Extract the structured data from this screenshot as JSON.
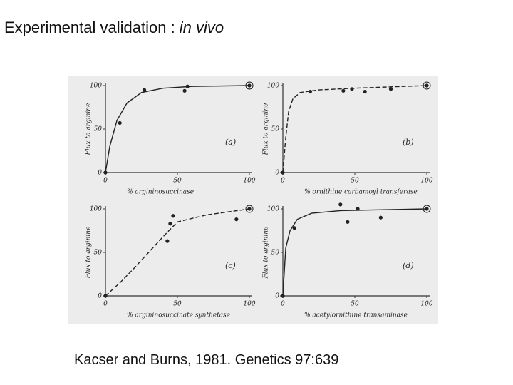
{
  "title": {
    "text": "Experimental validation : ",
    "emphasis": "in vivo"
  },
  "citation": "Kacser and Burns, 1981. Genetics 97:639",
  "chart_data": [
    {
      "type": "scatter",
      "panel_label": "(a)",
      "y_label": "Flux to arginine",
      "x_label": "% argininosuccinase",
      "xlim": [
        0,
        100
      ],
      "ylim": [
        0,
        100
      ],
      "xticks": [
        0,
        50,
        100
      ],
      "yticks": [
        0,
        50,
        100
      ],
      "color": "#222222",
      "points": {
        "x": [
          0,
          10,
          27,
          55,
          57,
          100
        ],
        "values": [
          0,
          57,
          95,
          94,
          99,
          100
        ]
      },
      "curve": {
        "dashed": false,
        "x": [
          0,
          3,
          8,
          15,
          25,
          40,
          60,
          100
        ],
        "values": [
          0,
          30,
          60,
          80,
          92,
          97,
          99,
          100
        ]
      }
    },
    {
      "type": "scatter",
      "panel_label": "(b)",
      "y_label": "Flux to arginine",
      "x_label": "% ornithine carbamoyl transferase",
      "xlim": [
        0,
        100
      ],
      "ylim": [
        0,
        100
      ],
      "xticks": [
        0,
        50,
        100
      ],
      "yticks": [
        0,
        50,
        100
      ],
      "color": "#222222",
      "points": {
        "x": [
          0,
          19,
          42,
          48,
          57,
          75,
          100
        ],
        "values": [
          0,
          93,
          94,
          96,
          93,
          96,
          100
        ]
      },
      "curve": {
        "dashed": true,
        "x": [
          0,
          2,
          4,
          7,
          12,
          25,
          50,
          100
        ],
        "values": [
          0,
          40,
          70,
          85,
          92,
          95,
          97,
          100
        ]
      }
    },
    {
      "type": "scatter",
      "panel_label": "(c)",
      "y_label": "Flux to arginine",
      "x_label": "% argininosuccinate synthetase",
      "xlim": [
        0,
        100
      ],
      "ylim": [
        0,
        100
      ],
      "xticks": [
        0,
        50,
        100
      ],
      "yticks": [
        0,
        50,
        100
      ],
      "color": "#222222",
      "points": {
        "x": [
          0,
          43,
          45,
          47,
          91,
          100
        ],
        "values": [
          0,
          63,
          83,
          92,
          88,
          100
        ]
      },
      "curve": {
        "dashed": true,
        "x": [
          0,
          10,
          20,
          30,
          40,
          50,
          70,
          100
        ],
        "values": [
          0,
          15,
          32,
          50,
          68,
          85,
          93,
          100
        ]
      }
    },
    {
      "type": "scatter",
      "panel_label": "(d)",
      "y_label": "Flux to arginine",
      "x_label": "% acetylornithine transaminase",
      "xlim": [
        0,
        100
      ],
      "ylim": [
        0,
        100
      ],
      "xticks": [
        0,
        50,
        100
      ],
      "yticks": [
        0,
        50,
        100
      ],
      "color": "#222222",
      "points": {
        "x": [
          0,
          8,
          40,
          45,
          52,
          68,
          100
        ],
        "values": [
          0,
          78,
          105,
          85,
          100,
          90,
          100
        ]
      },
      "curve": {
        "dashed": false,
        "x": [
          0,
          2,
          5,
          10,
          20,
          40,
          70,
          100
        ],
        "values": [
          0,
          55,
          75,
          88,
          95,
          98,
          99,
          100
        ]
      }
    }
  ]
}
